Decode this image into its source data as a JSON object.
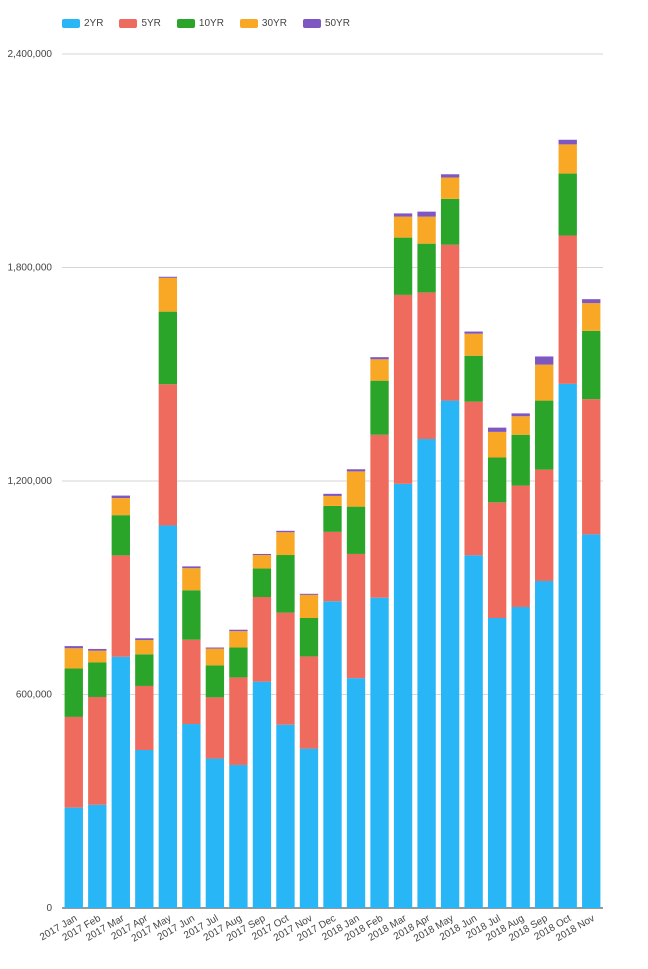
{
  "chart_data": {
    "type": "bar",
    "stacked": true,
    "ylim": [
      0,
      2400000
    ],
    "yticks": [
      0,
      600000,
      1200000,
      1800000,
      2400000
    ],
    "ytick_labels": [
      "0",
      "600,000",
      "1,200,000",
      "1,800,000",
      "2,400,000"
    ],
    "grid": true,
    "legend_position": "top-left",
    "categories": [
      "2017 Jan",
      "2017 Feb",
      "2017 Mar",
      "2017 Apr",
      "2017 May",
      "2017 Jun",
      "2017 Jul",
      "2017 Aug",
      "2017 Sep",
      "2017 Oct",
      "2017 Nov",
      "2017 Dec",
      "2018 Jan",
      "2018 Feb",
      "2018 Mar",
      "2018 Apr",
      "2018 May",
      "2018 Jun",
      "2018 Jul",
      "2018 Aug",
      "2018 Sep",
      "2018 Oct",
      "2018 Nov"
    ],
    "series": [
      {
        "name": "2YR",
        "color": "#29b6f6",
        "values": [
          282000,
          290000,
          706000,
          444000,
          1075000,
          517000,
          420000,
          402000,
          636000,
          515000,
          448000,
          862000,
          646000,
          872000,
          1192000,
          1318000,
          1426000,
          991000,
          815000,
          846000,
          919000,
          1473000,
          1050000
        ]
      },
      {
        "name": "5YR",
        "color": "#ef6b5e",
        "values": [
          255000,
          303000,
          285000,
          180000,
          397000,
          237000,
          172000,
          246000,
          238000,
          315000,
          259000,
          195000,
          349000,
          458000,
          531000,
          412000,
          438000,
          432000,
          325000,
          341000,
          313000,
          417000,
          380000
        ]
      },
      {
        "name": "10YR",
        "color": "#2aa52a",
        "values": [
          136000,
          97000,
          113000,
          89000,
          204000,
          139000,
          90000,
          84000,
          80000,
          162000,
          108000,
          73000,
          133000,
          152000,
          161000,
          137000,
          129000,
          129000,
          126000,
          143000,
          194000,
          174000,
          192000
        ]
      },
      {
        "name": "30YR",
        "color": "#f9a825",
        "values": [
          57000,
          33000,
          48000,
          40000,
          95000,
          62000,
          47000,
          46000,
          38000,
          64000,
          65000,
          28000,
          99000,
          60000,
          59000,
          76000,
          60000,
          62000,
          72000,
          52000,
          101000,
          82000,
          78000
        ]
      },
      {
        "name": "50YR",
        "color": "#7e57c2",
        "values": [
          6000,
          5000,
          7000,
          5000,
          3000,
          5000,
          3000,
          4000,
          3000,
          4000,
          3000,
          6000,
          6000,
          6000,
          9000,
          14000,
          9000,
          6000,
          12000,
          8000,
          23000,
          13000,
          11000
        ]
      }
    ]
  }
}
